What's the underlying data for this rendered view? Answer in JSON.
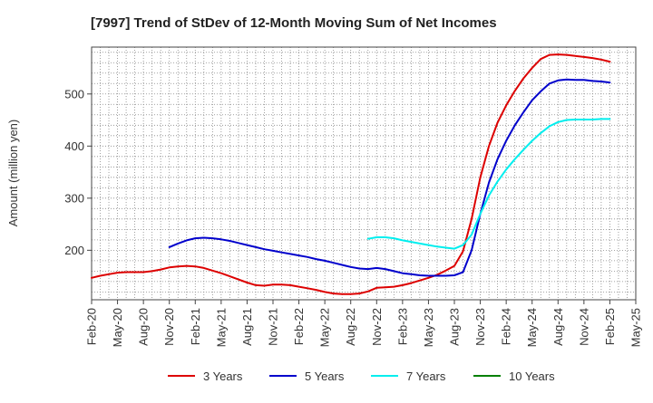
{
  "chart_data": {
    "type": "line",
    "title": "[7997]  Trend of StDev of 12-Month Moving Sum of Net Incomes",
    "xlabel": "",
    "ylabel": "Amount (million yen)",
    "x_ticks": [
      "Feb-20",
      "May-20",
      "Aug-20",
      "Nov-20",
      "Feb-21",
      "May-21",
      "Aug-21",
      "Nov-21",
      "Feb-22",
      "May-22",
      "Aug-22",
      "Nov-22",
      "Feb-23",
      "May-23",
      "Aug-23",
      "Nov-23",
      "Feb-24",
      "May-24",
      "Aug-24",
      "Nov-24",
      "Feb-25",
      "May-25"
    ],
    "y_ticks": [
      200,
      300,
      400,
      500
    ],
    "ylim": [
      105,
      590
    ],
    "grid": true,
    "legend_position": "bottom",
    "series": [
      {
        "name": "3 Years",
        "color": "#dd0000",
        "x": [
          "Feb-20",
          "Mar-20",
          "Apr-20",
          "May-20",
          "Jun-20",
          "Jul-20",
          "Aug-20",
          "Sep-20",
          "Oct-20",
          "Nov-20",
          "Dec-20",
          "Jan-21",
          "Feb-21",
          "Mar-21",
          "Apr-21",
          "May-21",
          "Jun-21",
          "Jul-21",
          "Aug-21",
          "Sep-21",
          "Oct-21",
          "Nov-21",
          "Dec-21",
          "Jan-22",
          "Feb-22",
          "Mar-22",
          "Apr-22",
          "May-22",
          "Jun-22",
          "Jul-22",
          "Aug-22",
          "Sep-22",
          "Oct-22",
          "Nov-22",
          "Dec-22",
          "Jan-23",
          "Feb-23",
          "Mar-23",
          "Apr-23",
          "May-23",
          "Jun-23",
          "Jul-23",
          "Aug-23",
          "Sep-23",
          "Oct-23",
          "Nov-23",
          "Dec-23",
          "Jan-24",
          "Feb-24",
          "Mar-24",
          "Apr-24",
          "May-24",
          "Jun-24",
          "Jul-24",
          "Aug-24",
          "Sep-24",
          "Oct-24",
          "Nov-24",
          "Dec-24",
          "Jan-25",
          "Feb-25"
        ],
        "values": [
          147,
          151,
          154,
          157,
          158,
          158,
          158,
          160,
          163,
          167,
          169,
          170,
          169,
          166,
          161,
          156,
          150,
          144,
          138,
          133,
          132,
          134,
          134,
          133,
          130,
          127,
          124,
          120,
          117,
          116,
          116,
          117,
          121,
          128,
          129,
          130,
          133,
          137,
          142,
          147,
          153,
          161,
          170,
          198,
          260,
          340,
          400,
          445,
          478,
          506,
          530,
          550,
          567,
          575,
          576,
          575,
          573,
          571,
          569,
          566,
          562
        ],
        "points": [
          [
            0,
            147
          ],
          [
            1,
            151
          ],
          [
            2,
            154
          ],
          [
            3,
            157
          ],
          [
            4,
            158
          ],
          [
            5,
            158
          ],
          [
            6,
            158
          ],
          [
            7,
            160
          ],
          [
            8,
            163
          ],
          [
            9,
            167
          ],
          [
            10,
            169
          ],
          [
            11,
            170
          ],
          [
            12,
            169
          ],
          [
            13,
            166
          ],
          [
            14,
            161
          ],
          [
            15,
            156
          ],
          [
            16,
            150
          ],
          [
            17,
            144
          ],
          [
            18,
            138
          ],
          [
            19,
            133
          ],
          [
            20,
            132
          ],
          [
            21,
            134
          ],
          [
            22,
            134
          ],
          [
            23,
            133
          ],
          [
            24,
            130
          ],
          [
            25,
            127
          ],
          [
            26,
            124
          ],
          [
            27,
            120
          ],
          [
            28,
            117
          ],
          [
            29,
            116
          ],
          [
            30,
            116
          ],
          [
            31,
            117
          ],
          [
            32,
            121
          ],
          [
            33,
            128
          ],
          [
            34,
            129
          ],
          [
            35,
            130
          ],
          [
            36,
            133
          ],
          [
            37,
            137
          ],
          [
            38,
            142
          ],
          [
            39,
            147
          ],
          [
            40,
            153
          ],
          [
            41,
            161
          ],
          [
            42,
            170
          ],
          [
            43,
            198
          ],
          [
            44,
            260
          ],
          [
            45,
            340
          ],
          [
            46,
            400
          ],
          [
            47,
            445
          ],
          [
            48,
            478
          ],
          [
            49,
            506
          ],
          [
            50,
            530
          ],
          [
            51,
            550
          ],
          [
            52,
            567
          ],
          [
            53,
            575
          ],
          [
            54,
            576
          ],
          [
            55,
            575
          ],
          [
            56,
            573
          ],
          [
            57,
            571
          ],
          [
            58,
            569
          ],
          [
            59,
            566
          ],
          [
            60,
            562
          ]
        ]
      },
      {
        "name": "5 Years",
        "color": "#0000cc",
        "x": [
          "Nov-20",
          "Dec-20",
          "Jan-21",
          "Feb-21",
          "Mar-21",
          "Apr-21",
          "May-21",
          "Jun-21",
          "Jul-21",
          "Aug-21",
          "Sep-21",
          "Oct-21",
          "Nov-21",
          "Dec-21",
          "Jan-22",
          "Feb-22",
          "Mar-22",
          "Apr-22",
          "May-22",
          "Jun-22",
          "Jul-22",
          "Aug-22",
          "Sep-22",
          "Oct-22",
          "Nov-22",
          "Dec-22",
          "Jan-23",
          "Feb-23",
          "Mar-23",
          "Apr-23",
          "May-23",
          "Jun-23",
          "Jul-23",
          "Aug-23",
          "Sep-23",
          "Oct-23",
          "Nov-23",
          "Dec-23",
          "Jan-24",
          "Feb-24",
          "Mar-24",
          "Apr-24",
          "May-24",
          "Jun-24",
          "Jul-24",
          "Aug-24",
          "Sep-24",
          "Oct-24",
          "Nov-24",
          "Dec-24",
          "Jan-25",
          "Feb-25"
        ],
        "values": [
          206,
          213,
          219,
          223,
          224,
          223,
          221,
          218,
          214,
          210,
          206,
          202,
          199,
          196,
          193,
          190,
          187,
          183,
          180,
          176,
          172,
          168,
          165,
          164,
          166,
          164,
          160,
          156,
          154,
          152,
          151,
          151,
          151,
          152,
          158,
          200,
          270,
          330,
          375,
          410,
          440,
          465,
          488,
          505,
          520,
          526,
          528,
          527,
          527,
          525,
          524,
          522
        ],
        "points": [
          [
            9,
            206
          ],
          [
            10,
            213
          ],
          [
            11,
            219
          ],
          [
            12,
            223
          ],
          [
            13,
            224
          ],
          [
            14,
            223
          ],
          [
            15,
            221
          ],
          [
            16,
            218
          ],
          [
            17,
            214
          ],
          [
            18,
            210
          ],
          [
            19,
            206
          ],
          [
            20,
            202
          ],
          [
            21,
            199
          ],
          [
            22,
            196
          ],
          [
            23,
            193
          ],
          [
            24,
            190
          ],
          [
            25,
            187
          ],
          [
            26,
            183
          ],
          [
            27,
            180
          ],
          [
            28,
            176
          ],
          [
            29,
            172
          ],
          [
            30,
            168
          ],
          [
            31,
            165
          ],
          [
            32,
            164
          ],
          [
            33,
            166
          ],
          [
            34,
            164
          ],
          [
            35,
            160
          ],
          [
            36,
            156
          ],
          [
            37,
            154
          ],
          [
            38,
            152
          ],
          [
            39,
            151
          ],
          [
            40,
            151
          ],
          [
            41,
            151
          ],
          [
            42,
            152
          ],
          [
            43,
            158
          ],
          [
            44,
            200
          ],
          [
            45,
            270
          ],
          [
            46,
            330
          ],
          [
            47,
            375
          ],
          [
            48,
            410
          ],
          [
            49,
            440
          ],
          [
            50,
            465
          ],
          [
            51,
            488
          ],
          [
            52,
            505
          ],
          [
            53,
            520
          ],
          [
            54,
            526
          ],
          [
            55,
            528
          ],
          [
            56,
            527
          ],
          [
            57,
            527
          ],
          [
            58,
            525
          ],
          [
            59,
            524
          ],
          [
            60,
            522
          ]
        ]
      },
      {
        "name": "7 Years",
        "color": "#00eeee",
        "x": [
          "Oct-22",
          "Nov-22",
          "Dec-22",
          "Jan-23",
          "Feb-23",
          "Mar-23",
          "Apr-23",
          "May-23",
          "Jun-23",
          "Jul-23",
          "Aug-23",
          "Sep-23",
          "Oct-23",
          "Nov-23",
          "Dec-23",
          "Jan-24",
          "Feb-24",
          "Mar-24",
          "Apr-24",
          "May-24",
          "Jun-24",
          "Jul-24",
          "Aug-24",
          "Sep-24",
          "Oct-24",
          "Nov-24",
          "Dec-24",
          "Jan-25",
          "Feb-25"
        ],
        "values": [
          222,
          225,
          225,
          223,
          219,
          216,
          213,
          210,
          207,
          205,
          203,
          210,
          230,
          270,
          305,
          332,
          355,
          375,
          393,
          410,
          425,
          438,
          446,
          450,
          451,
          451,
          451,
          452,
          452
        ],
        "points": [
          [
            32,
            222
          ],
          [
            33,
            225
          ],
          [
            34,
            225
          ],
          [
            35,
            223
          ],
          [
            36,
            219
          ],
          [
            37,
            216
          ],
          [
            38,
            213
          ],
          [
            39,
            210
          ],
          [
            40,
            207
          ],
          [
            41,
            205
          ],
          [
            42,
            203
          ],
          [
            43,
            210
          ],
          [
            44,
            230
          ],
          [
            45,
            270
          ],
          [
            46,
            305
          ],
          [
            47,
            332
          ],
          [
            48,
            355
          ],
          [
            49,
            375
          ],
          [
            50,
            393
          ],
          [
            51,
            410
          ],
          [
            52,
            425
          ],
          [
            53,
            438
          ],
          [
            54,
            446
          ],
          [
            55,
            450
          ],
          [
            56,
            451
          ],
          [
            57,
            451
          ],
          [
            58,
            451
          ],
          [
            59,
            452
          ],
          [
            60,
            452
          ]
        ]
      },
      {
        "name": "10 Years",
        "color": "#008000",
        "x": [],
        "values": [],
        "points": []
      }
    ]
  }
}
